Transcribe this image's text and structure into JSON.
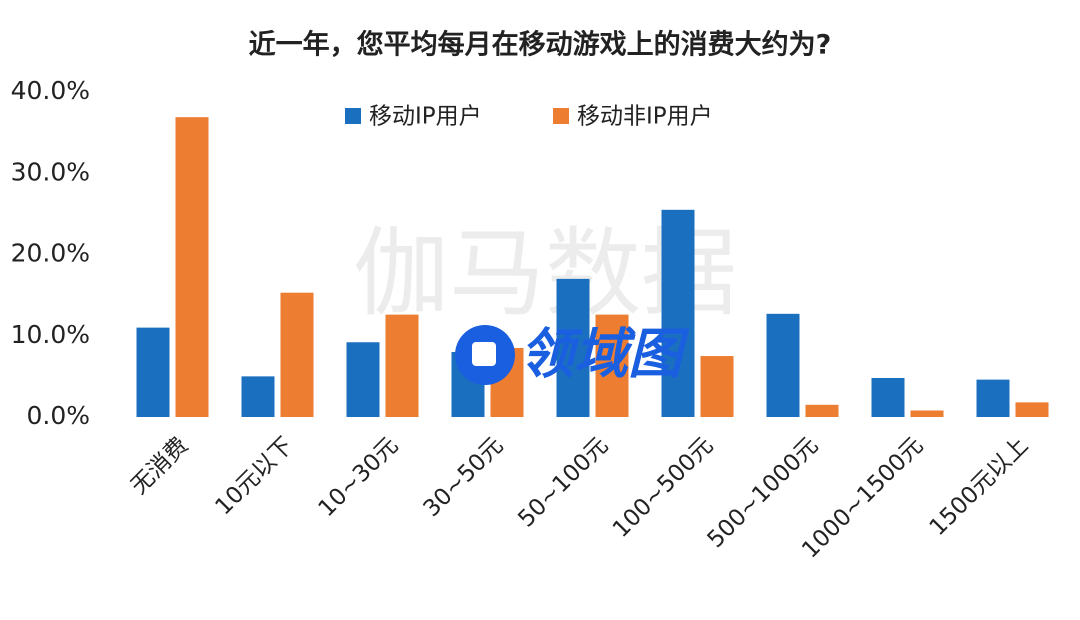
{
  "chart_data": {
    "type": "bar",
    "title": "近一年，您平均每月在移动游戏上的消费大约为?",
    "categories": [
      "无消费",
      "10元以下",
      "10~30元",
      "30~50元",
      "50~100元",
      "100~500元",
      "500~1000元",
      "1000~1500元",
      "1500元以上"
    ],
    "series": [
      {
        "name": "移动IP用户",
        "color": "#1a6fbf",
        "values": [
          11.0,
          5.0,
          9.2,
          8.0,
          17.0,
          25.5,
          12.7,
          4.8,
          4.6
        ]
      },
      {
        "name": "移动非IP用户",
        "color": "#ed7d31",
        "values": [
          36.9,
          15.3,
          12.6,
          8.5,
          12.6,
          7.5,
          1.5,
          0.8,
          1.8
        ]
      }
    ],
    "ylim": [
      0,
      40
    ],
    "yticks": [
      {
        "value": 0,
        "label": "0.0%"
      },
      {
        "value": 10,
        "label": "10.0%"
      },
      {
        "value": 20,
        "label": "20.0%"
      },
      {
        "value": 30,
        "label": "30.0%"
      },
      {
        "value": 40,
        "label": "40.0%"
      }
    ],
    "legend": "top",
    "watermark": "伽马数据",
    "logo": "领域图"
  }
}
